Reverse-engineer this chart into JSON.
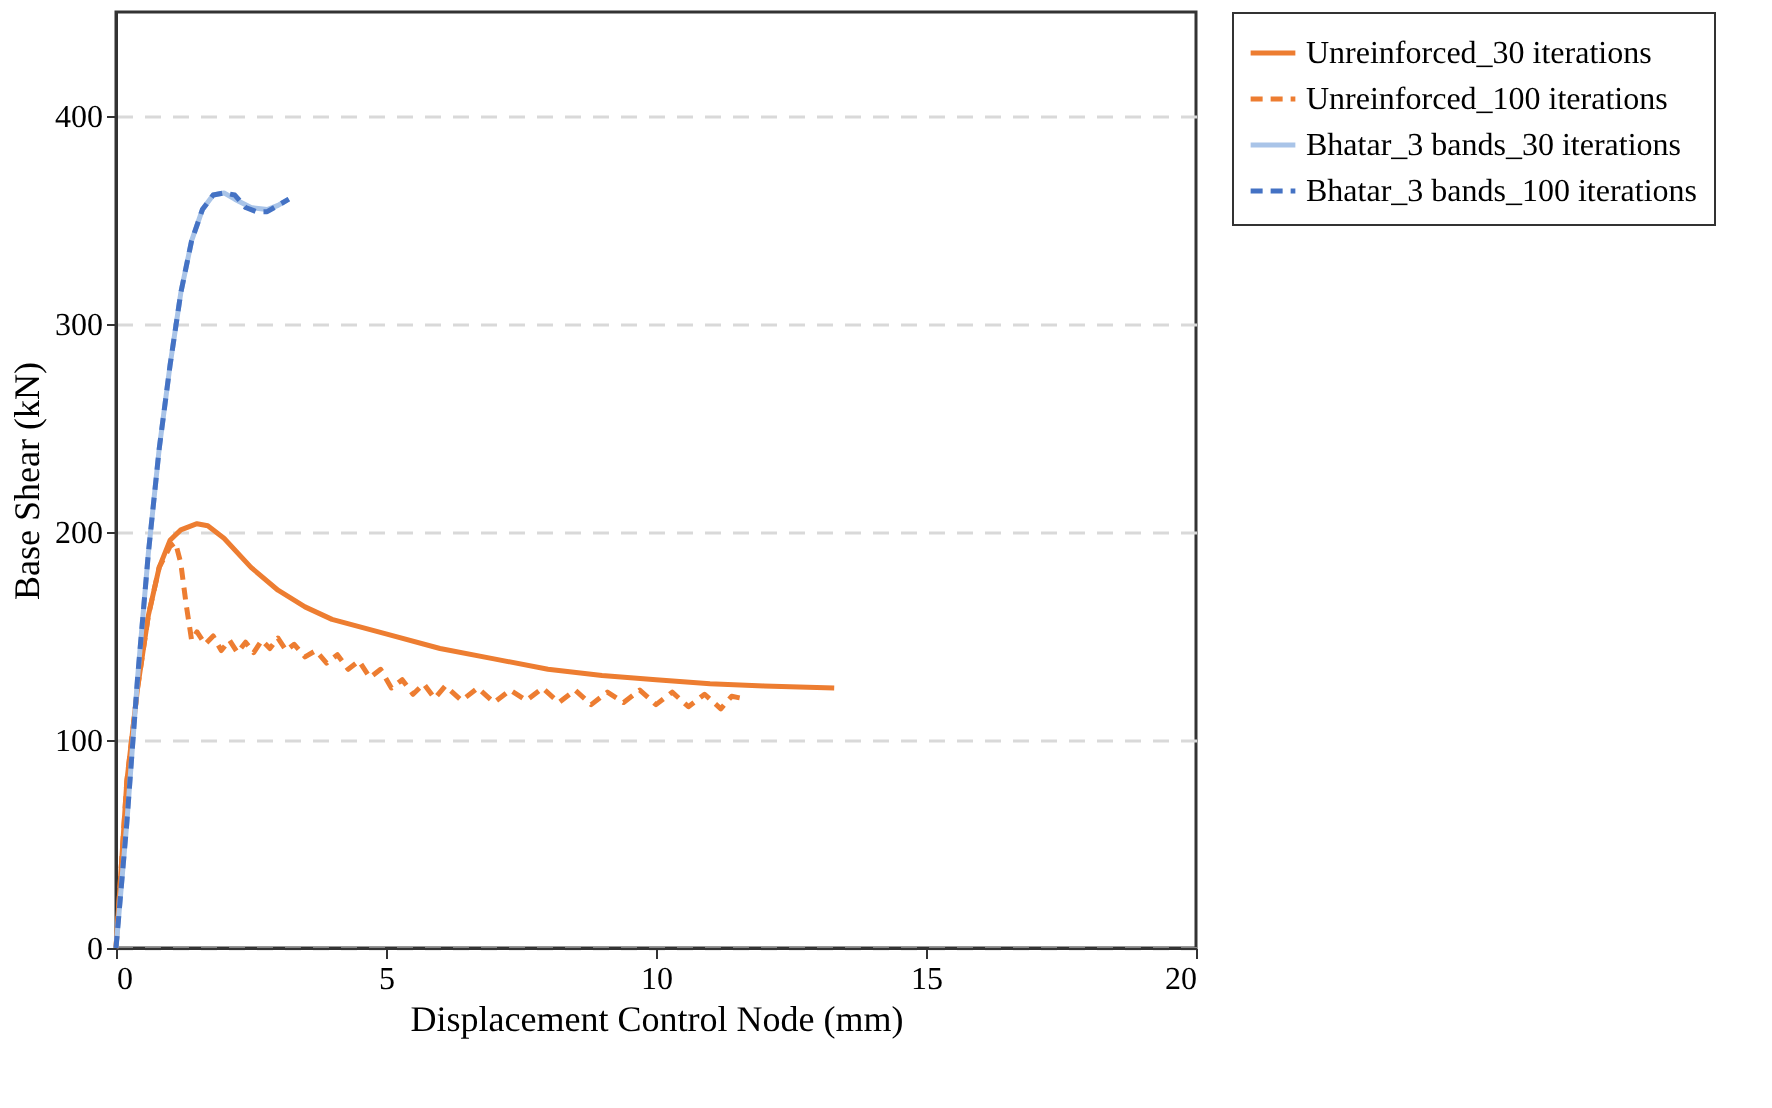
{
  "chart_data": {
    "type": "line",
    "xlabel": "Displacement Control Node (mm)",
    "ylabel": "Base Shear (kN)",
    "xlim": [
      0,
      20
    ],
    "ylim": [
      0,
      450
    ],
    "xticks": [
      0,
      5,
      10,
      15,
      20
    ],
    "yticks": [
      0,
      100,
      200,
      300,
      400
    ],
    "grid": "y",
    "legend": "top right",
    "series": [
      {
        "name": "Unreinforced_30 iterations",
        "color": "#ed7d31",
        "line_style": "solid",
        "x": [
          0,
          0.1,
          0.2,
          0.4,
          0.6,
          0.8,
          1.0,
          1.2,
          1.5,
          1.7,
          2.0,
          2.5,
          3.0,
          3.5,
          4.0,
          5.0,
          6.0,
          7.0,
          8.0,
          9.0,
          10.0,
          11.0,
          12.0,
          13.3
        ],
        "values": [
          0,
          40,
          80,
          125,
          160,
          183,
          196,
          201,
          204,
          203,
          197,
          183,
          172,
          164,
          158,
          151,
          144,
          139,
          134,
          131,
          129,
          127,
          126,
          125
        ]
      },
      {
        "name": "Unreinforced_100 iterations",
        "color": "#ed7d31",
        "line_style": "dashed",
        "x": [
          0,
          0.1,
          0.2,
          0.4,
          0.6,
          0.8,
          1.0,
          1.1,
          1.2,
          1.3,
          1.4,
          1.5,
          1.65,
          1.8,
          1.95,
          2.1,
          2.25,
          2.4,
          2.55,
          2.7,
          2.85,
          3.0,
          3.15,
          3.3,
          3.5,
          3.7,
          3.9,
          4.1,
          4.3,
          4.5,
          4.7,
          4.9,
          5.1,
          5.3,
          5.5,
          5.7,
          5.9,
          6.1,
          6.4,
          6.7,
          7.0,
          7.3,
          7.6,
          7.9,
          8.2,
          8.5,
          8.8,
          9.1,
          9.4,
          9.7,
          10.0,
          10.3,
          10.6,
          10.9,
          11.2,
          11.4,
          11.6
        ],
        "values": [
          0,
          40,
          80,
          125,
          160,
          183,
          193,
          195,
          185,
          165,
          148,
          152,
          146,
          150,
          143,
          148,
          142,
          147,
          142,
          148,
          144,
          149,
          143,
          146,
          140,
          143,
          137,
          141,
          134,
          138,
          130,
          134,
          125,
          129,
          122,
          127,
          120,
          126,
          119,
          125,
          118,
          124,
          119,
          125,
          118,
          124,
          117,
          123,
          118,
          124,
          117,
          123,
          116,
          122,
          115,
          121,
          120
        ]
      },
      {
        "name": "Bhatar_3 bands_30 iterations",
        "color": "#a9c4e8",
        "line_style": "solid",
        "x": [
          0,
          0.2,
          0.4,
          0.6,
          0.8,
          1.0,
          1.2,
          1.4,
          1.6,
          1.8,
          2.0,
          2.2,
          2.5,
          2.8,
          3.0,
          3.2
        ],
        "values": [
          0,
          60,
          130,
          190,
          240,
          280,
          315,
          340,
          355,
          362,
          363,
          360,
          356,
          355,
          357,
          360
        ]
      },
      {
        "name": "Bhatar_3 bands_100 iterations",
        "color": "#4472c4",
        "line_style": "dashed",
        "x": [
          0,
          0.2,
          0.4,
          0.6,
          0.8,
          1.0,
          1.2,
          1.4,
          1.6,
          1.8,
          2.0,
          2.2,
          2.4,
          2.6,
          2.8,
          3.0,
          3.2
        ],
        "values": [
          0,
          60,
          130,
          190,
          240,
          280,
          315,
          340,
          355,
          362,
          363,
          362,
          356,
          354,
          354,
          357,
          360
        ]
      }
    ]
  }
}
